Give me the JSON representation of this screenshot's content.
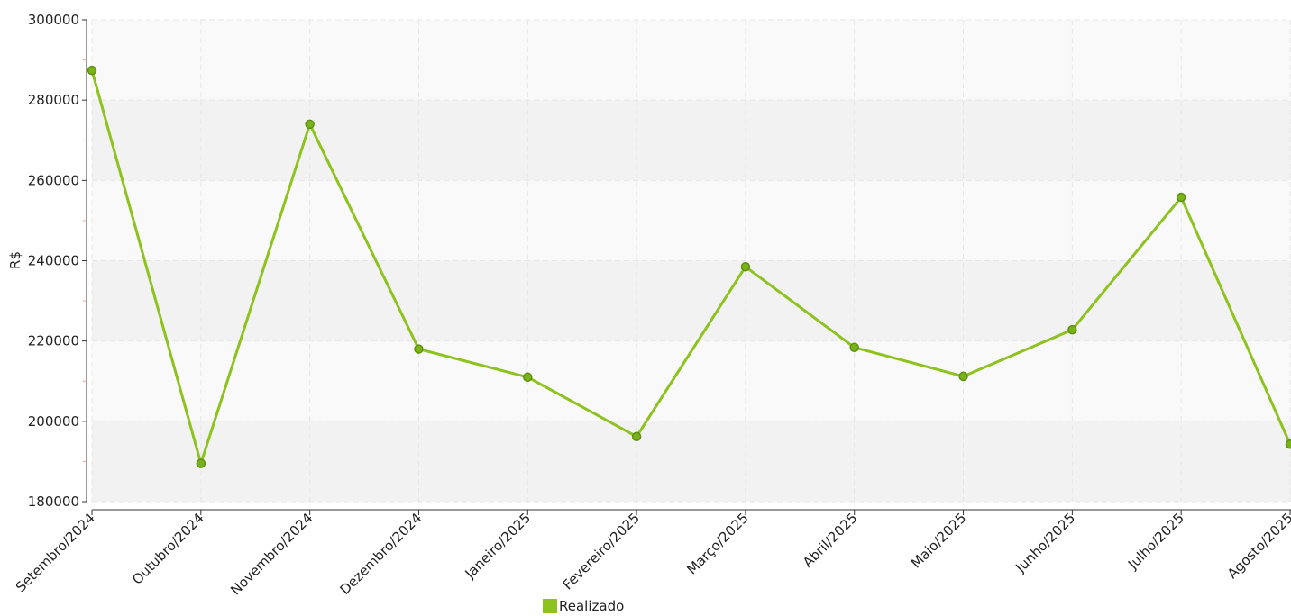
{
  "chart_data": {
    "type": "line",
    "title": "",
    "xlabel": "",
    "ylabel": "R$",
    "categories": [
      "Setembro/2024",
      "Outubro/2024",
      "Novembro/2024",
      "Dezembro/2024",
      "Janeiro/2025",
      "Fevereiro/2025",
      "Março/2025",
      "Abril/2025",
      "Maio/2025",
      "Junho/2025",
      "Julho/2025",
      "Agosto/2025"
    ],
    "series": [
      {
        "name": "Realizado",
        "values": [
          287400,
          189500,
          274000,
          218000,
          211000,
          196200,
          238500,
          218400,
          211200,
          222800,
          255800,
          194300
        ]
      }
    ],
    "ylim": [
      180000,
      300000
    ],
    "yticks": [
      "180000",
      "200000",
      "220000",
      "240000",
      "260000",
      "280000",
      "300000"
    ],
    "grid": true,
    "legend_position": "bottom-center",
    "colors": {
      "line": "#8dc21f",
      "marker_fill": "#7ab317",
      "marker_stroke": "#5f8f12",
      "band_dark": "#f2f2f2",
      "band_light": "#f9f9f9"
    }
  }
}
